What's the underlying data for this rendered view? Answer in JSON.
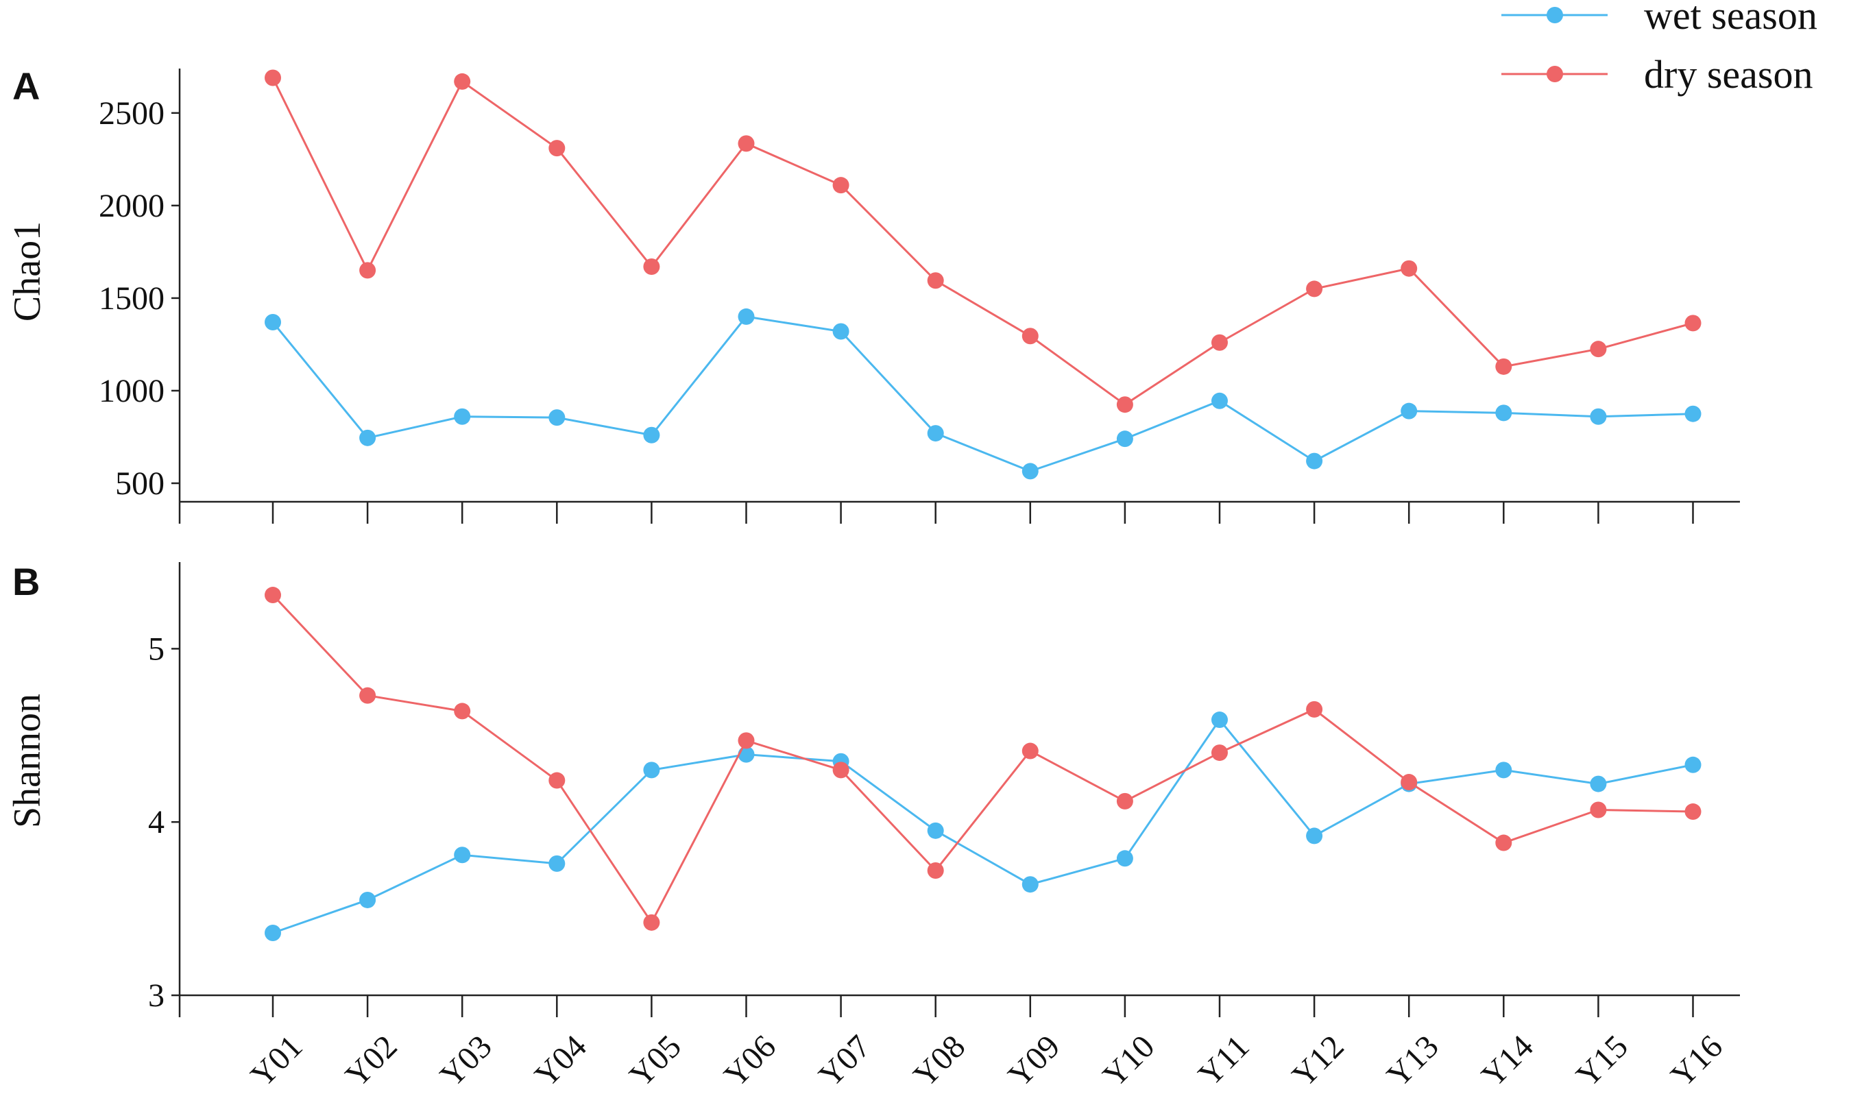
{
  "colors": {
    "wet": "#4bb8ef",
    "dry": "#ee6567"
  },
  "legend": {
    "placement": "top-right",
    "items": [
      {
        "label": "wet season",
        "color": "#4bb8ef"
      },
      {
        "label": "dry season",
        "color": "#ee6567"
      }
    ]
  },
  "chart_data": [
    {
      "type": "line",
      "panel_label": "A",
      "ylabel": "Chao1",
      "xlabel": "",
      "categories": [
        "Y01",
        "Y02",
        "Y03",
        "Y04",
        "Y05",
        "Y06",
        "Y07",
        "Y08",
        "Y09",
        "Y10",
        "Y11",
        "Y12",
        "Y13",
        "Y14",
        "Y15",
        "Y16"
      ],
      "ylim": [
        400,
        2740
      ],
      "yticks": [
        500,
        1000,
        1500,
        2000,
        2500
      ],
      "grid": false,
      "series": [
        {
          "name": "wet season",
          "color": "#4bb8ef",
          "values": [
            1370,
            745,
            860,
            855,
            760,
            1400,
            1320,
            770,
            565,
            740,
            945,
            620,
            890,
            880,
            860,
            875
          ]
        },
        {
          "name": "dry season",
          "color": "#ee6567",
          "values": [
            2690,
            1650,
            2670,
            2310,
            1670,
            2335,
            2110,
            1595,
            1295,
            925,
            1260,
            1550,
            1660,
            1130,
            1225,
            1365
          ]
        }
      ]
    },
    {
      "type": "line",
      "panel_label": "B",
      "ylabel": "Shannon",
      "xlabel": "",
      "categories": [
        "Y01",
        "Y02",
        "Y03",
        "Y04",
        "Y05",
        "Y06",
        "Y07",
        "Y08",
        "Y09",
        "Y10",
        "Y11",
        "Y12",
        "Y13",
        "Y14",
        "Y15",
        "Y16"
      ],
      "ylim": [
        3,
        5.5
      ],
      "yticks": [
        3,
        4,
        5
      ],
      "grid": false,
      "series": [
        {
          "name": "wet season",
          "color": "#4bb8ef",
          "values": [
            3.36,
            3.55,
            3.81,
            3.76,
            4.3,
            4.39,
            4.35,
            3.95,
            3.64,
            3.79,
            4.59,
            3.92,
            4.22,
            4.3,
            4.22,
            4.33
          ]
        },
        {
          "name": "dry season",
          "color": "#ee6567",
          "values": [
            5.31,
            4.73,
            4.64,
            4.24,
            3.42,
            4.47,
            4.3,
            3.72,
            4.41,
            4.12,
            4.4,
            4.65,
            4.23,
            3.88,
            4.07,
            4.06
          ]
        }
      ]
    }
  ]
}
